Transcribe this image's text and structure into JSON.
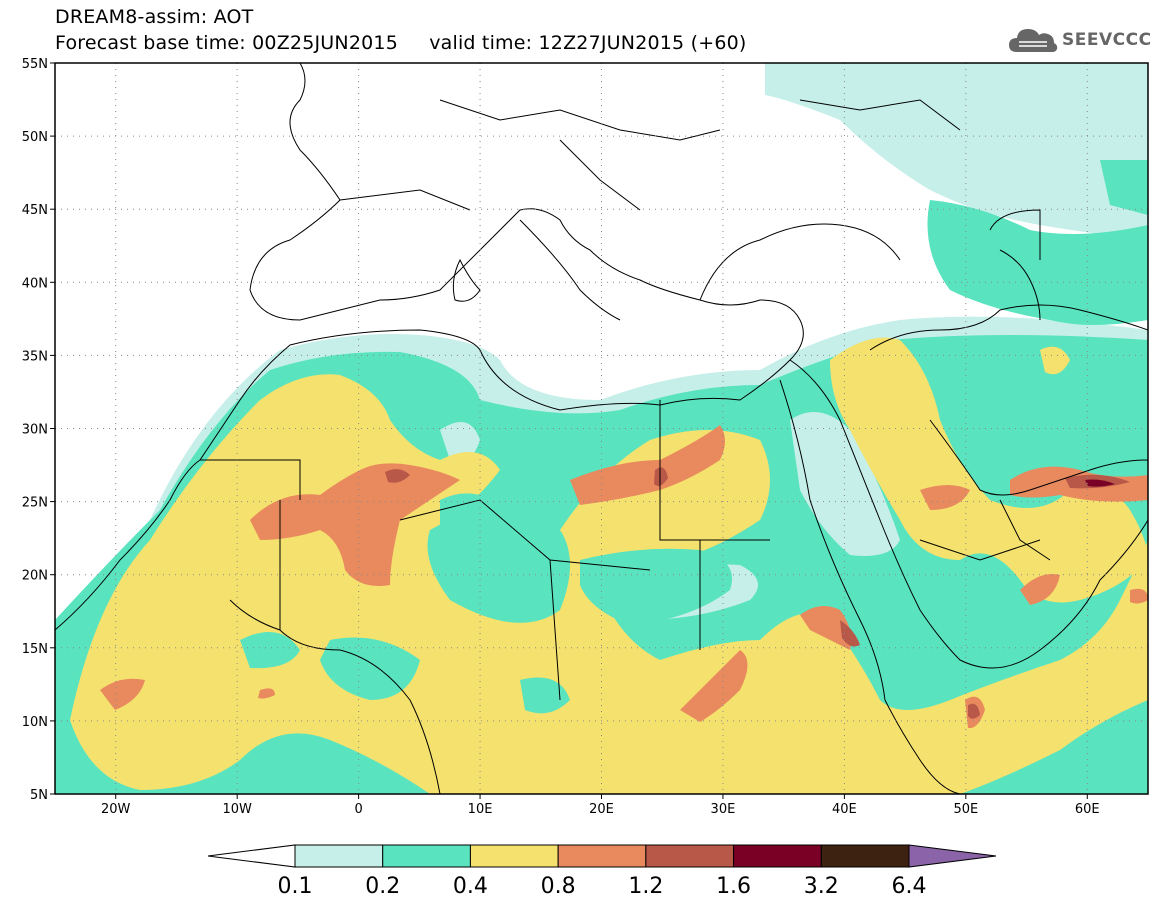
{
  "header": {
    "title_line1": "DREAM8-assim: AOT",
    "base_time_label": "Forecast base time: 00Z25JUN2015",
    "valid_time_label": "valid time: 12Z27JUN2015 (+60)"
  },
  "logo": {
    "text": "SEEVCCC",
    "icon": "cloud-icon",
    "color": "#666666"
  },
  "map": {
    "lon_range": [
      -25,
      65
    ],
    "lat_range": [
      5,
      55
    ],
    "lat_ticks": [
      {
        "value": 55,
        "label": "55N"
      },
      {
        "value": 50,
        "label": "50N"
      },
      {
        "value": 45,
        "label": "45N"
      },
      {
        "value": 40,
        "label": "40N"
      },
      {
        "value": 35,
        "label": "35N"
      },
      {
        "value": 30,
        "label": "30N"
      },
      {
        "value": 25,
        "label": "25N"
      },
      {
        "value": 20,
        "label": "20N"
      },
      {
        "value": 15,
        "label": "15N"
      },
      {
        "value": 10,
        "label": "10N"
      },
      {
        "value": 5,
        "label": "5N"
      }
    ],
    "lon_ticks": [
      {
        "value": -20,
        "label": "20W"
      },
      {
        "value": -10,
        "label": "10W"
      },
      {
        "value": 0,
        "label": "0"
      },
      {
        "value": 10,
        "label": "10E"
      },
      {
        "value": 20,
        "label": "20E"
      },
      {
        "value": 30,
        "label": "30E"
      },
      {
        "value": 40,
        "label": "40E"
      },
      {
        "value": 50,
        "label": "50E"
      },
      {
        "value": 60,
        "label": "60E"
      }
    ],
    "grid": "dotted"
  },
  "colorbar": {
    "colors": [
      "#ffffff",
      "#c6efe9",
      "#59e3bf",
      "#f5e26e",
      "#e98a5e",
      "#b85849",
      "#7a0026",
      "#3e2211",
      "#8a63a8"
    ],
    "labels": [
      "0.1",
      "0.2",
      "0.4",
      "0.8",
      "1.2",
      "1.6",
      "3.2",
      "6.4"
    ]
  }
}
